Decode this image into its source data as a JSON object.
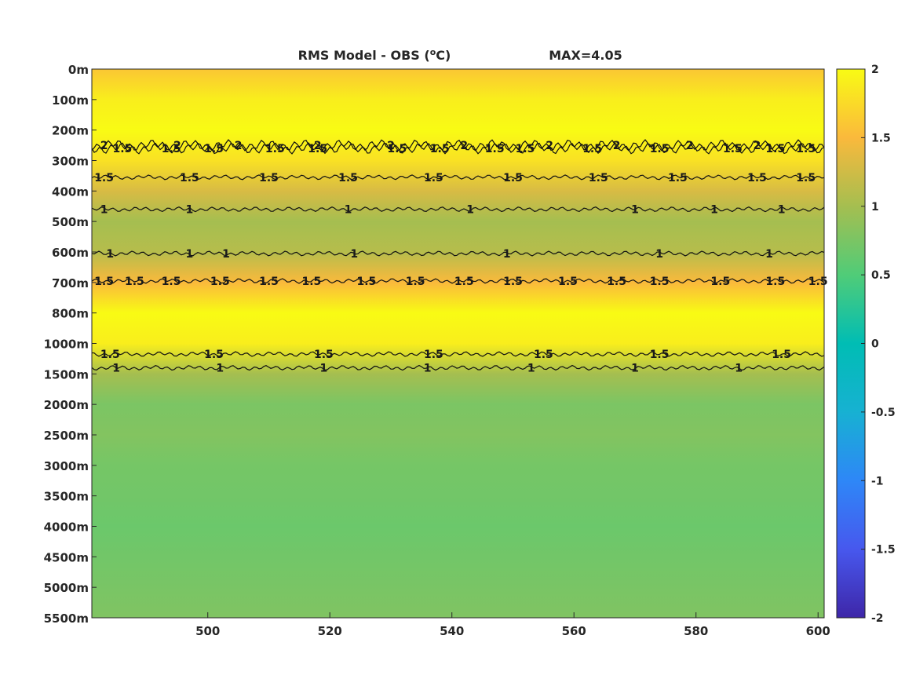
{
  "chart_data": {
    "type": "heatmap",
    "title": "RMS Model - OBS (°C)",
    "title_main": "RMS Model - OBS (",
    "title_deg": "o",
    "title_unit": "C)",
    "max_label": "MAX=4.05",
    "xlabel": "",
    "ylabel": "",
    "xlim": [
      481,
      601
    ],
    "x_ticks": [
      500,
      520,
      540,
      560,
      580,
      600
    ],
    "y_ticks": [
      "0m",
      "100m",
      "200m",
      "300m",
      "400m",
      "500m",
      "600m",
      "700m",
      "800m",
      "1000m",
      "1500m",
      "2000m",
      "2500m",
      "3000m",
      "3500m",
      "4000m",
      "4500m",
      "5000m",
      "5500m"
    ],
    "colorbar": {
      "range": [
        -2,
        2
      ],
      "ticks": [
        "2",
        "1.5",
        "1",
        "0.5",
        "0",
        "-0.5",
        "-1",
        "-1.5",
        "-2"
      ],
      "colormap": "parula"
    },
    "depth_profile": [
      {
        "depth": "0m",
        "value": 1.6
      },
      {
        "depth": "100m",
        "value": 1.9
      },
      {
        "depth": "200m",
        "value": 2.0
      },
      {
        "depth": "300m",
        "value": 1.8
      },
      {
        "depth": "400m",
        "value": 1.3
      },
      {
        "depth": "500m",
        "value": 1.0
      },
      {
        "depth": "600m",
        "value": 1.1
      },
      {
        "depth": "700m",
        "value": 1.5
      },
      {
        "depth": "800m",
        "value": 2.0
      },
      {
        "depth": "1000m",
        "value": 1.9
      },
      {
        "depth": "1500m",
        "value": 1.0
      },
      {
        "depth": "2000m",
        "value": 0.75
      },
      {
        "depth": "2500m",
        "value": 0.8
      },
      {
        "depth": "3000m",
        "value": 0.72
      },
      {
        "depth": "3500m",
        "value": 0.7
      },
      {
        "depth": "4000m",
        "value": 0.66
      },
      {
        "depth": "4500m",
        "value": 0.7
      },
      {
        "depth": "5000m",
        "value": 0.74
      },
      {
        "depth": "5500m",
        "value": 0.78
      }
    ],
    "contour_levels": [
      {
        "level": "1.5",
        "depth_row": 2.6,
        "labels_x": [
          486,
          494,
          501,
          511,
          518,
          531,
          538,
          547,
          552,
          563,
          574,
          586,
          593,
          598
        ]
      },
      {
        "level": "2",
        "depth_row": 2.5,
        "labels_x": [
          483,
          495,
          505,
          518,
          530,
          542,
          556,
          567,
          579,
          590
        ]
      },
      {
        "level": "1.5",
        "depth_row": 3.55,
        "labels_x": [
          483,
          497,
          510,
          523,
          537,
          550,
          564,
          577,
          590,
          598
        ]
      },
      {
        "level": "1",
        "depth_row": 4.6,
        "labels_x": [
          483,
          497,
          523,
          543,
          570,
          583,
          594
        ]
      },
      {
        "level": "1",
        "depth_row": 6.05,
        "labels_x": [
          484,
          497,
          503,
          524,
          549,
          574,
          592
        ]
      },
      {
        "level": "1.5",
        "depth_row": 6.95,
        "labels_x": [
          483,
          488,
          494,
          502,
          510,
          517,
          526,
          534,
          542,
          550,
          559,
          567,
          574,
          584,
          593,
          600
        ]
      },
      {
        "level": "1.5",
        "depth_row": 9.35,
        "labels_x": [
          484,
          501,
          519,
          537,
          555,
          574,
          594
        ]
      },
      {
        "level": "1",
        "depth_row": 9.8,
        "labels_x": [
          485,
          502,
          519,
          536,
          553,
          570,
          587
        ]
      }
    ]
  }
}
